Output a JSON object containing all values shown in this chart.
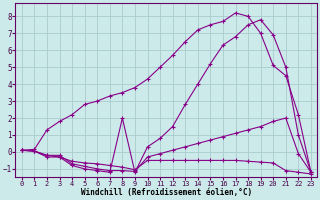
{
  "background_color": "#cceaea",
  "grid_color": "#aacccc",
  "line_color": "#880088",
  "xlabel": "Windchill (Refroidissement éolien,°C)",
  "xlim": [
    -0.5,
    23.5
  ],
  "ylim": [
    -1.5,
    8.8
  ],
  "xticks": [
    0,
    1,
    2,
    3,
    4,
    5,
    6,
    7,
    8,
    9,
    10,
    11,
    12,
    13,
    14,
    15,
    16,
    17,
    18,
    19,
    20,
    21,
    22,
    23
  ],
  "yticks": [
    -1,
    0,
    1,
    2,
    3,
    4,
    5,
    6,
    7,
    8
  ],
  "series": [
    {
      "x": [
        0,
        1,
        2,
        3,
        4,
        5,
        6,
        7,
        8,
        9,
        10,
        11,
        12,
        13,
        14,
        15,
        16,
        17,
        18,
        19,
        20,
        21,
        22,
        23
      ],
      "y": [
        0.1,
        0.05,
        -0.3,
        -0.3,
        -0.55,
        -0.65,
        -0.7,
        -0.8,
        -0.9,
        -1.05,
        -0.5,
        -0.5,
        -0.5,
        -0.5,
        -0.5,
        -0.5,
        -0.5,
        -0.5,
        -0.55,
        -0.6,
        -0.65,
        -1.1,
        -1.2,
        -1.3
      ]
    },
    {
      "x": [
        0,
        1,
        2,
        3,
        4,
        5,
        6,
        7,
        8,
        9,
        10,
        11,
        12,
        13,
        14,
        15,
        16,
        17,
        18,
        19,
        20,
        21,
        22,
        23
      ],
      "y": [
        0.1,
        0.05,
        -0.2,
        -0.2,
        -0.7,
        -0.85,
        -1.0,
        -1.1,
        -1.1,
        -1.15,
        -0.3,
        -0.1,
        0.1,
        0.3,
        0.5,
        0.7,
        0.9,
        1.1,
        1.3,
        1.5,
        1.8,
        2.0,
        -0.1,
        -1.2
      ]
    },
    {
      "x": [
        0,
        1,
        2,
        3,
        4,
        5,
        6,
        7,
        8,
        9,
        10,
        11,
        12,
        13,
        14,
        15,
        16,
        17,
        18,
        19,
        20,
        21,
        22,
        23
      ],
      "y": [
        0.1,
        0.05,
        -0.2,
        -0.3,
        -0.8,
        -1.0,
        -1.1,
        -1.2,
        2.0,
        -1.2,
        0.3,
        0.8,
        1.5,
        2.8,
        4.0,
        5.2,
        6.3,
        6.8,
        7.5,
        7.8,
        6.9,
        5.0,
        1.0,
        -1.2
      ]
    },
    {
      "x": [
        0,
        1,
        2,
        3,
        4,
        5,
        6,
        7,
        8,
        9,
        10,
        11,
        12,
        13,
        14,
        15,
        16,
        17,
        18,
        19,
        20,
        21,
        22,
        23
      ],
      "y": [
        0.1,
        0.15,
        1.3,
        1.8,
        2.2,
        2.8,
        3.0,
        3.3,
        3.5,
        3.8,
        4.3,
        5.0,
        5.7,
        6.5,
        7.2,
        7.5,
        7.7,
        8.2,
        8.0,
        7.0,
        5.1,
        4.5,
        2.2,
        -1.2
      ]
    }
  ]
}
